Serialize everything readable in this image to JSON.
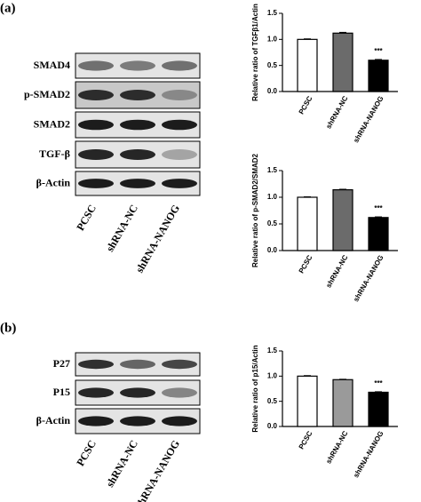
{
  "panels": [
    {
      "label": "(a)",
      "blot": {
        "rows": [
          "SMAD4",
          "p-SMAD2",
          "SMAD2",
          "TGF-β",
          "β-Actin"
        ],
        "lanes": [
          "PCSC",
          "shRNA-NC",
          "shRNA-NANOG"
        ]
      }
    },
    {
      "label": "(b)",
      "blot": {
        "rows": [
          "P27",
          "P15",
          "β-Actin"
        ],
        "lanes": [
          "PCSC",
          "shRNA-NC",
          "shRNA-NANOG"
        ]
      }
    }
  ],
  "chart_data": [
    {
      "type": "bar",
      "ylabel": "Relative ratio of TGFβ1/Actin",
      "categories": [
        "PCSC",
        "shRNA-NC",
        "shRNA-NANOG"
      ],
      "values": [
        1.0,
        1.12,
        0.6
      ],
      "errors": [
        0.01,
        0.015,
        0.015
      ],
      "colors": [
        "#ffffff",
        "#6b6b6b",
        "#000000"
      ],
      "annotations": [
        null,
        null,
        "***"
      ],
      "ylim": [
        0,
        1.5
      ],
      "yticks": [
        {
          "value": 0,
          "label": "0.0"
        },
        0.5,
        {
          "value": 1,
          "label": "1.0"
        },
        1.5
      ]
    },
    {
      "type": "bar",
      "ylabel": "Relative ratio of p-SMAD2/SMAD2",
      "categories": [
        "PCSC",
        "shRNA-NC",
        "shRNA-NANOG"
      ],
      "values": [
        1.0,
        1.14,
        0.62
      ],
      "errors": [
        0.008,
        0.01,
        0.012
      ],
      "colors": [
        "#ffffff",
        "#6b6b6b",
        "#000000"
      ],
      "annotations": [
        null,
        null,
        "***"
      ],
      "ylim": [
        0,
        1.5
      ],
      "yticks": [
        {
          "value": 0,
          "label": "0.0"
        },
        0.5,
        {
          "value": 1,
          "label": "1.0"
        },
        1.5
      ]
    },
    {
      "type": "bar",
      "ylabel": "Relative ratio of p15/Actin",
      "categories": [
        "PCSC",
        "shRNA-NC",
        "shRNA-NANOG"
      ],
      "values": [
        1.0,
        0.93,
        0.68
      ],
      "errors": [
        0.01,
        0.008,
        0.01
      ],
      "colors": [
        "#ffffff",
        "#9a9a9a",
        "#000000"
      ],
      "annotations": [
        null,
        null,
        "***"
      ],
      "ylim": [
        0,
        1.5
      ],
      "yticks": [
        {
          "value": 0,
          "label": "0.0"
        },
        0.5,
        {
          "value": 1,
          "label": "1.0"
        },
        1.5
      ]
    }
  ]
}
